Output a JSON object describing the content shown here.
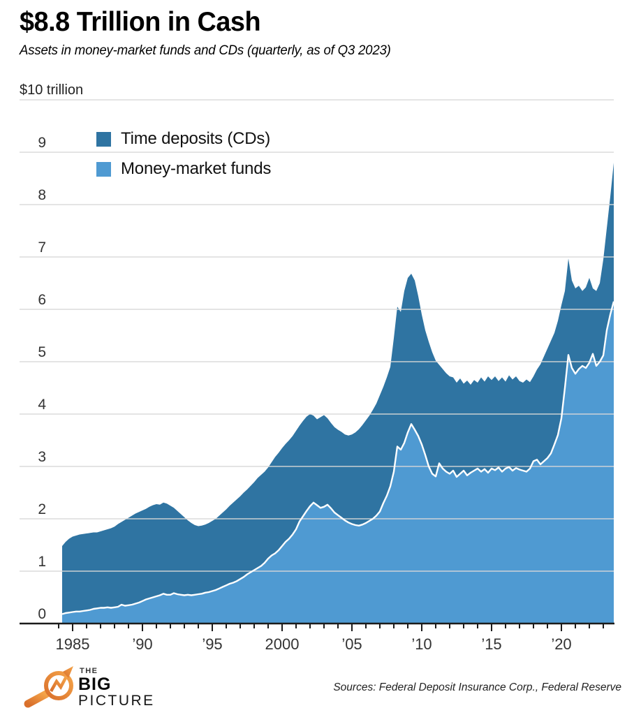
{
  "header": {
    "title": "$8.8 Trillion in Cash",
    "subtitle": "Assets in money-market funds and CDs (quarterly, as of Q3 2023)"
  },
  "chart": {
    "top_axis_label": "$10 trillion",
    "legend": [
      {
        "label": "Time deposits (CDs)",
        "color": "#2f74a2"
      },
      {
        "label": "Money-market funds",
        "color": "#4f9ad2"
      }
    ],
    "y_ticks": [
      0,
      1,
      2,
      3,
      4,
      5,
      6,
      7,
      8,
      9
    ],
    "x_ticks": [
      {
        "year": 1985,
        "label": "1985"
      },
      {
        "year": 1990,
        "label": "’90"
      },
      {
        "year": 1995,
        "label": "’95"
      },
      {
        "year": 2000,
        "label": "2000"
      },
      {
        "year": 2005,
        "label": "’05"
      },
      {
        "year": 2010,
        "label": "’10"
      },
      {
        "year": 2015,
        "label": "’15"
      },
      {
        "year": 2020,
        "label": "’20"
      }
    ]
  },
  "chart_data": {
    "type": "area",
    "stacked": true,
    "title": "$8.8 Trillion in Cash",
    "subtitle": "Assets in money-market funds and CDs (quarterly, as of Q3 2023)",
    "unit": "trillions of US dollars",
    "x_start": "1984 Q1",
    "x_end": "2023 Q3",
    "x_frequency": "quarterly",
    "ylim": [
      0,
      10
    ],
    "grid": true,
    "legend_position": "top-left inside plot",
    "stacking_note": "Light series (money-market funds) forms the bottom band with a white boundary line; the dark band on top is time deposits (CDs) = total minus money-market funds.",
    "series": [
      {
        "name": "Money-market funds",
        "color": "#4f9ad2",
        "values": [
          0.18,
          0.2,
          0.21,
          0.22,
          0.23,
          0.23,
          0.24,
          0.25,
          0.26,
          0.28,
          0.29,
          0.3,
          0.3,
          0.31,
          0.3,
          0.31,
          0.32,
          0.36,
          0.34,
          0.35,
          0.36,
          0.38,
          0.4,
          0.43,
          0.46,
          0.48,
          0.5,
          0.52,
          0.54,
          0.57,
          0.55,
          0.55,
          0.58,
          0.56,
          0.55,
          0.54,
          0.55,
          0.54,
          0.55,
          0.56,
          0.57,
          0.59,
          0.6,
          0.62,
          0.64,
          0.67,
          0.7,
          0.73,
          0.76,
          0.78,
          0.81,
          0.85,
          0.89,
          0.94,
          0.98,
          1.02,
          1.06,
          1.1,
          1.16,
          1.24,
          1.3,
          1.34,
          1.4,
          1.48,
          1.56,
          1.62,
          1.7,
          1.8,
          1.95,
          2.05,
          2.15,
          2.24,
          2.31,
          2.26,
          2.21,
          2.23,
          2.27,
          2.2,
          2.12,
          2.07,
          2.02,
          1.97,
          1.93,
          1.9,
          1.88,
          1.87,
          1.89,
          1.92,
          1.96,
          2.0,
          2.06,
          2.14,
          2.3,
          2.44,
          2.62,
          2.9,
          3.38,
          3.32,
          3.45,
          3.65,
          3.81,
          3.7,
          3.58,
          3.42,
          3.22,
          3.0,
          2.86,
          2.81,
          3.06,
          2.96,
          2.9,
          2.86,
          2.92,
          2.8,
          2.86,
          2.92,
          2.83,
          2.88,
          2.92,
          2.96,
          2.9,
          2.95,
          2.88,
          2.96,
          2.93,
          2.98,
          2.9,
          2.96,
          2.99,
          2.92,
          2.97,
          2.94,
          2.92,
          2.9,
          2.96,
          3.1,
          3.13,
          3.04,
          3.1,
          3.16,
          3.25,
          3.42,
          3.6,
          3.92,
          4.5,
          5.13,
          4.88,
          4.77,
          4.86,
          4.92,
          4.88,
          4.98,
          5.15,
          4.92,
          5.0,
          5.12,
          5.6,
          5.9,
          6.15
        ]
      },
      {
        "name": "Total: money-market funds + time deposits (CDs)",
        "color": "#2f74a2",
        "values": [
          1.48,
          1.56,
          1.62,
          1.66,
          1.68,
          1.7,
          1.71,
          1.72,
          1.73,
          1.74,
          1.74,
          1.76,
          1.78,
          1.8,
          1.82,
          1.85,
          1.9,
          1.94,
          1.98,
          2.02,
          2.06,
          2.1,
          2.13,
          2.16,
          2.19,
          2.23,
          2.26,
          2.28,
          2.27,
          2.31,
          2.29,
          2.25,
          2.21,
          2.15,
          2.09,
          2.03,
          1.97,
          1.92,
          1.88,
          1.86,
          1.87,
          1.89,
          1.92,
          1.96,
          2.0,
          2.06,
          2.12,
          2.18,
          2.25,
          2.31,
          2.37,
          2.43,
          2.5,
          2.56,
          2.63,
          2.7,
          2.78,
          2.84,
          2.9,
          2.98,
          3.08,
          3.18,
          3.26,
          3.35,
          3.43,
          3.5,
          3.58,
          3.68,
          3.78,
          3.87,
          3.95,
          4.0,
          3.97,
          3.9,
          3.94,
          3.98,
          3.92,
          3.83,
          3.75,
          3.7,
          3.66,
          3.61,
          3.59,
          3.61,
          3.65,
          3.71,
          3.79,
          3.88,
          3.97,
          4.08,
          4.2,
          4.36,
          4.52,
          4.7,
          4.9,
          5.45,
          6.05,
          5.95,
          6.35,
          6.6,
          6.68,
          6.55,
          6.25,
          5.9,
          5.6,
          5.38,
          5.18,
          5.02,
          4.94,
          4.86,
          4.78,
          4.72,
          4.7,
          4.6,
          4.68,
          4.58,
          4.64,
          4.56,
          4.65,
          4.6,
          4.7,
          4.62,
          4.72,
          4.65,
          4.72,
          4.63,
          4.7,
          4.62,
          4.74,
          4.66,
          4.72,
          4.63,
          4.6,
          4.66,
          4.61,
          4.72,
          4.85,
          4.95,
          5.1,
          5.25,
          5.4,
          5.55,
          5.78,
          6.08,
          6.35,
          6.97,
          6.55,
          6.4,
          6.45,
          6.35,
          6.42,
          6.6,
          6.4,
          6.35,
          6.5,
          6.95,
          7.55,
          8.15,
          8.8
        ]
      }
    ]
  },
  "footer": {
    "logo": {
      "the": "THE",
      "big": "BIG",
      "picture": "PICTURE"
    },
    "sources": "Sources: Federal Deposit Insurance Corp., Federal Reserve"
  },
  "colors": {
    "dark_blue": "#2f74a2",
    "light_blue": "#4f9ad2",
    "grid": "#d8d8d8",
    "axis": "#1b1b1b",
    "white_line": "#ffffff",
    "logo_orange_dark": "#d96f2b",
    "logo_orange_light": "#f5a54a"
  }
}
